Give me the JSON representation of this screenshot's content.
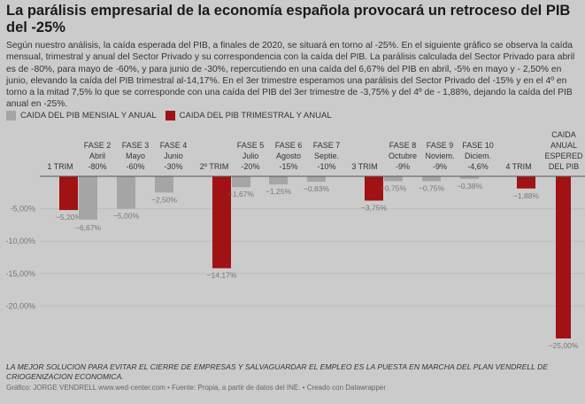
{
  "title": "La parálisis empresarial de la economía española provocará un retroceso del PIB del -25%",
  "description": "Según nuestro análisis, la caída esperada del PIB, a finales de 2020, se situará en torno al -25%. En el siguiente gráfico se observa la caída mensual, trimestral y anual del Sector Privado y su correspondencia con la caída del PIB. La parálisis calculada del Sector Privado para abril es de -80%, para mayo de -60%, y para junio de -30%, repercutiendo en una caída del 6,67% del PIB en abril, -5% en mayo y - 2,50% en junio, elevando la caída del PIB trimestral al-14,17%. En el 3er trimestre esperamos una parálisis del Sector Privado del -15% y en el 4º en torno a la mitad 7,5% lo que se corresponde con una caída del PIB del 3er trimestre de -3,75% y del 4º de - 1,88%, dejando la caída del PIB anual en -25%.",
  "note": "LA MEJOR SOLUCION PARA EVITAR EL CIERRE DE EMPRESAS Y SALVAGUARDAR EL EMPLEO ES LA PUESTA EN MARCHA DEL PLAN VENDRELL DE CRIOGENIZACION ECONOMICA.",
  "credit": "Gráfico: JORGE VENDRELL www.wed-center.com • Fuente: Propia, a partir de datos del INE. • Creado con Datawrapper",
  "colors": {
    "mensual": "#a5a5a5",
    "trimestral": "#a01214"
  },
  "chart_data": {
    "type": "bar",
    "legend": {
      "placement": "top-left",
      "items": [
        {
          "label": "CAIDA DEL PIB MENSIAL Y ANUAL",
          "series": "mensual"
        },
        {
          "label": "CAIDA DEL PIB TRIMESTRAL Y ANUAL",
          "series": "trimestral"
        }
      ]
    },
    "ylim": [
      -25,
      0
    ],
    "yticks": [
      "-5,00%",
      "-10,00%",
      "-15,00%",
      "-20,00%"
    ],
    "ytick_values": [
      -5,
      -10,
      -15,
      -20
    ],
    "grid": true,
    "categories": [
      {
        "label": [
          "1 TRIM"
        ],
        "bars": [
          {
            "series": "trimestral",
            "value": -5.2,
            "label": "−5,20%"
          },
          {
            "series": "mensual",
            "value": -6.67,
            "label": "−6,67%"
          }
        ]
      },
      {
        "label": [
          "FASE 2",
          "Abril",
          "-80%"
        ],
        "bars": []
      },
      {
        "label": [
          "FASE 3",
          "Mayo",
          "-60%"
        ],
        "bars": [
          {
            "series": "mensual",
            "value": -5.0,
            "label": "−5,00%"
          }
        ]
      },
      {
        "label": [
          "FASE 4",
          "Junio",
          "-30%"
        ],
        "bars": [
          {
            "series": "mensual",
            "value": -2.5,
            "label": "−2,50%"
          }
        ]
      },
      {
        "label": [
          "2º TRIM"
        ],
        "bars": [
          {
            "series": "trimestral",
            "value": -14.17,
            "label": "−14,17%"
          },
          {
            "series": "mensual",
            "value": -1.67,
            "label": "−1,67%"
          }
        ]
      },
      {
        "label": [
          "FASE 5",
          "Julio",
          "-20%"
        ],
        "bars": []
      },
      {
        "label": [
          "FASE 6",
          "Agosto",
          "-15%"
        ],
        "bars": [
          {
            "series": "mensual",
            "value": -1.25,
            "label": "−1,25%"
          }
        ]
      },
      {
        "label": [
          "FASE 7",
          "Septie.",
          "-10%"
        ],
        "bars": [
          {
            "series": "mensual",
            "value": -0.83,
            "label": "−0,83%"
          }
        ]
      },
      {
        "label": [
          "3 TRIM"
        ],
        "bars": [
          {
            "series": "trimestral",
            "value": -3.75,
            "label": "−3,75%"
          },
          {
            "series": "mensual",
            "value": -0.75,
            "label": "−0,75%"
          }
        ]
      },
      {
        "label": [
          "FASE 8",
          "Octubre",
          "-9%"
        ],
        "bars": []
      },
      {
        "label": [
          "FASE 9",
          "Noviem.",
          "-9%"
        ],
        "bars": [
          {
            "series": "mensual",
            "value": -0.75,
            "label": "−0,75%"
          }
        ]
      },
      {
        "label": [
          "FASE 10",
          "Diciem.",
          "-4,6%"
        ],
        "bars": [
          {
            "series": "mensual",
            "value": -0.38,
            "label": "−0,38%"
          }
        ]
      },
      {
        "label": [
          "4 TRIM"
        ],
        "bars": [
          {
            "series": "trimestral",
            "value": -1.88,
            "label": "−1,88%"
          }
        ]
      },
      {
        "label": [
          "CAIDA",
          "ANUAL",
          "ESPERED",
          "DEL PIB"
        ],
        "bars": [
          {
            "series": "trimestral",
            "value": -25.0,
            "label": "−25,00%"
          }
        ]
      }
    ]
  }
}
